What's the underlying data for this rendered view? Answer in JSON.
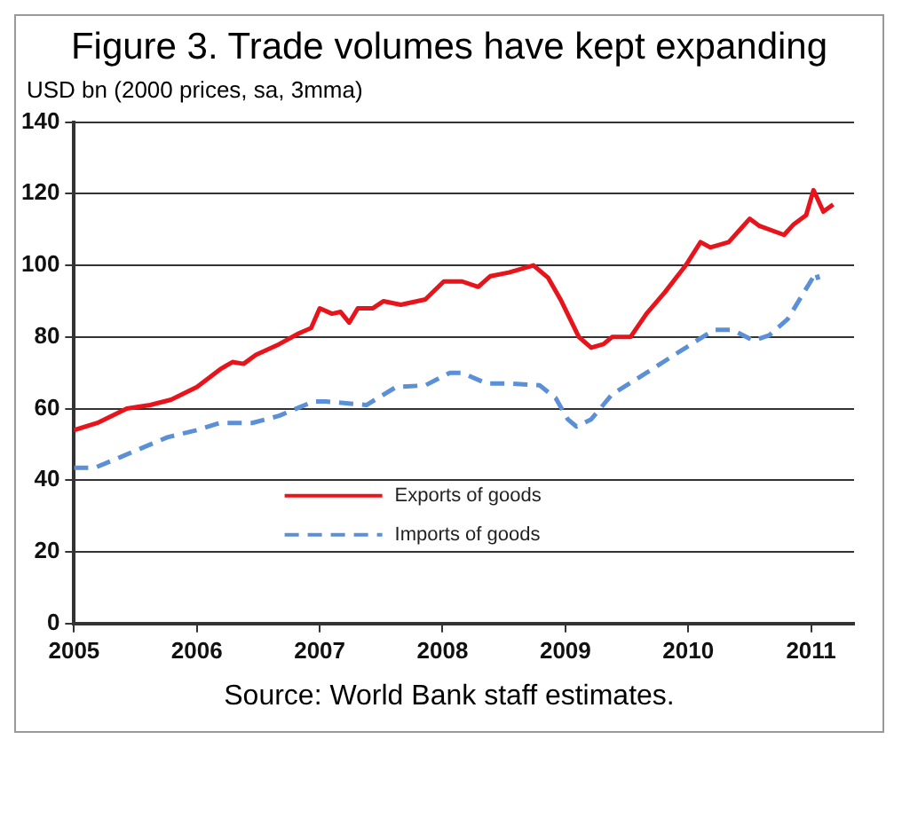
{
  "chart_data": {
    "type": "line",
    "title": "Figure 3. Trade volumes have kept expanding",
    "ylabel": "USD bn (2000 prices, sa, 3mma)",
    "annotations": [
      "Source: World Bank staff estimates."
    ],
    "xlim": [
      2005,
      2011.35
    ],
    "xticks": [
      2005,
      2006,
      2007,
      2008,
      2009,
      2010,
      2011
    ],
    "ylim": [
      0,
      140
    ],
    "yticks": [
      0,
      20,
      40,
      60,
      80,
      100,
      120,
      140
    ],
    "grid": "y",
    "legend": "bottom",
    "marker": "none",
    "series": [
      {
        "name": "Exports of goods",
        "color": "#e8141b",
        "line_style": "solid",
        "x": [
          2005.0,
          2005.19,
          2005.43,
          2005.62,
          2005.79,
          2006.0,
          2006.19,
          2006.29,
          2006.38,
          2006.48,
          2006.67,
          2006.83,
          2006.93,
          2007.0,
          2007.1,
          2007.17,
          2007.24,
          2007.31,
          2007.43,
          2007.52,
          2007.66,
          2007.86,
          2008.01,
          2008.16,
          2008.29,
          2008.39,
          2008.54,
          2008.64,
          2008.74,
          2008.86,
          2008.96,
          2009.11,
          2009.21,
          2009.31,
          2009.38,
          2009.53,
          2009.66,
          2009.81,
          2009.98,
          2010.1,
          2010.18,
          2010.33,
          2010.5,
          2010.58,
          2010.78,
          2010.86,
          2010.96,
          2011.02,
          2011.1,
          2011.18
        ],
        "values": [
          54,
          56,
          60,
          61,
          62.5,
          66,
          71,
          73,
          72.5,
          75,
          78,
          81,
          82.5,
          88,
          86.5,
          87,
          84,
          88,
          88,
          90,
          89,
          90.5,
          95.5,
          95.5,
          94,
          97,
          98,
          99,
          100,
          96.5,
          90.5,
          80,
          77,
          78,
          80,
          80,
          86.5,
          92.5,
          100,
          106.5,
          105,
          106.5,
          113,
          111,
          108.5,
          111.5,
          114,
          121,
          115,
          117
        ]
      },
      {
        "name": "Imports of goods",
        "color": "#5b8fd6",
        "line_style": "dashed",
        "x": [
          2005.0,
          2005.17,
          2005.38,
          2005.76,
          2006.0,
          2006.19,
          2006.45,
          2006.67,
          2006.95,
          2007.05,
          2007.38,
          2007.62,
          2007.86,
          2008.06,
          2008.16,
          2008.36,
          2008.54,
          2008.79,
          2008.92,
          2009.02,
          2009.09,
          2009.21,
          2009.38,
          2009.66,
          2009.91,
          2010.21,
          2010.36,
          2010.53,
          2010.66,
          2010.81,
          2011.04,
          2011.06
        ],
        "values": [
          43.5,
          43.5,
          46.5,
          52,
          54,
          56,
          56,
          58,
          62,
          62,
          61,
          66,
          66.5,
          70,
          70,
          67,
          67,
          66.5,
          63,
          57,
          55,
          57,
          64,
          70,
          75.5,
          82,
          82,
          79,
          80.5,
          85,
          98,
          96
        ]
      }
    ]
  }
}
